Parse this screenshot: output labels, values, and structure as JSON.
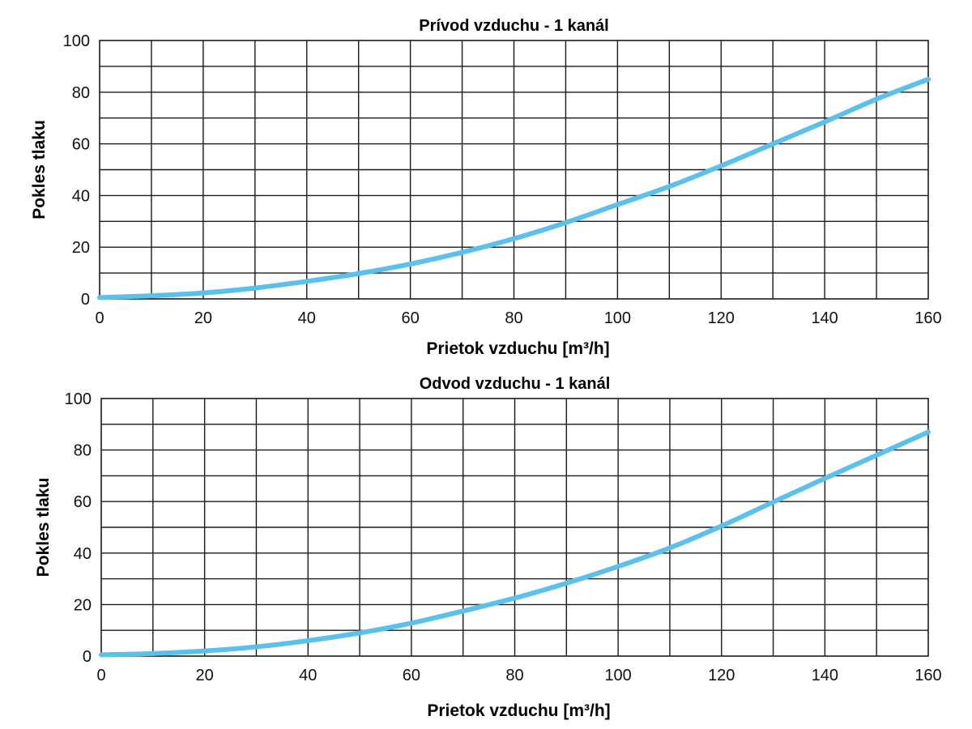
{
  "chart_data": [
    {
      "type": "line",
      "title": "Prívod vzduchu - 1 kanál",
      "xlabel": "Prietok vzduchu [m³/h]",
      "ylabel": "Pokles tlaku",
      "xlim": [
        0,
        160
      ],
      "ylim": [
        0,
        100
      ],
      "x_ticks": [
        "0",
        "20",
        "40",
        "60",
        "80",
        "100",
        "120",
        "140",
        "160"
      ],
      "y_ticks": [
        "0",
        "20",
        "40",
        "60",
        "80",
        "100"
      ],
      "grid": true,
      "line_color": "#5bc0eb",
      "series": [
        {
          "x": [
            0,
            10,
            20,
            30,
            40,
            50,
            60,
            70,
            80,
            90,
            100,
            110,
            120,
            130,
            140,
            150,
            160
          ],
          "y": [
            0.5,
            1.2,
            2.3,
            4.2,
            6.8,
            9.8,
            13.5,
            18,
            23.3,
            29.5,
            36.5,
            43.5,
            51.5,
            60,
            68.5,
            77.3,
            85
          ]
        }
      ]
    },
    {
      "type": "line",
      "title": "Odvod vzduchu - 1 kanál",
      "xlabel": "Prietok vzduchu [m³/h]",
      "ylabel": "Pokles tlaku",
      "xlim": [
        0,
        160
      ],
      "ylim": [
        0,
        100
      ],
      "x_ticks": [
        "0",
        "20",
        "40",
        "60",
        "80",
        "100",
        "120",
        "140",
        "160"
      ],
      "y_ticks": [
        "0",
        "20",
        "40",
        "60",
        "80",
        "100"
      ],
      "grid": true,
      "line_color": "#5bc0eb",
      "series": [
        {
          "x": [
            0,
            10,
            20,
            30,
            40,
            50,
            60,
            70,
            80,
            90,
            100,
            110,
            120,
            130,
            140,
            150,
            160
          ],
          "y": [
            0.5,
            1,
            2,
            3.6,
            6,
            9,
            12.8,
            17.5,
            22.5,
            28.3,
            34.8,
            42,
            50.5,
            59.8,
            69,
            78,
            87
          ]
        }
      ]
    }
  ]
}
